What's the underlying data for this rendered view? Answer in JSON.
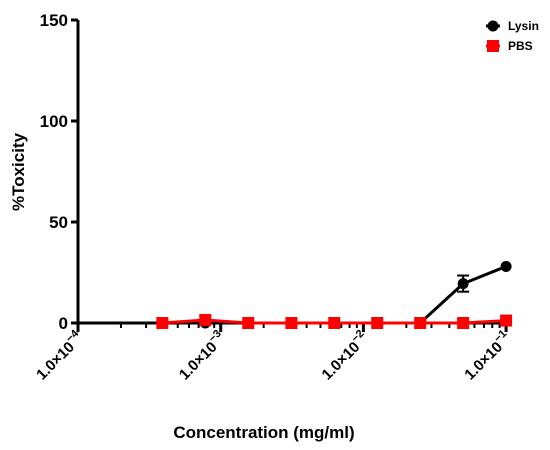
{
  "chart_data": {
    "type": "line",
    "xlabel": "Concentration (mg/ml)",
    "ylabel": "%Toxicity",
    "xscale": "log",
    "xlim": [
      0.0001,
      0.11
    ],
    "ylim": [
      0,
      150
    ],
    "yticks": [
      0,
      50,
      100,
      150
    ],
    "ytick_labels": [
      "0",
      "50",
      "100",
      "150"
    ],
    "xticks": [
      0.0001,
      0.001,
      0.01,
      0.1
    ],
    "xtick_labels": [
      {
        "base": "1.0×10",
        "exp": "−4"
      },
      {
        "base": "1.0×10",
        "exp": "−3"
      },
      {
        "base": "1.0×10",
        "exp": "−2"
      },
      {
        "base": "1.0×10",
        "exp": "−1"
      }
    ],
    "grid": false,
    "legend_position": "top-right",
    "series": [
      {
        "name": "Lysin",
        "color": "#000000",
        "marker": "circle",
        "x": [
          0.00039,
          0.00078,
          0.00156,
          0.00313,
          0.00625,
          0.0125,
          0.025,
          0.05,
          0.1
        ],
        "y": [
          0,
          0,
          0,
          0,
          0,
          0,
          0,
          19.5,
          28
        ],
        "error": [
          0,
          0,
          0,
          0,
          0,
          0,
          0,
          4,
          0
        ]
      },
      {
        "name": "PBS",
        "color": "#ff0000",
        "marker": "square",
        "x": [
          0.00039,
          0.00078,
          0.00156,
          0.00313,
          0.00625,
          0.0125,
          0.025,
          0.05,
          0.1
        ],
        "y": [
          0,
          1.5,
          0,
          0,
          0,
          0,
          0,
          0,
          1.2
        ],
        "error": [
          0,
          0,
          0,
          0,
          0,
          0,
          0,
          0,
          0
        ]
      }
    ]
  }
}
